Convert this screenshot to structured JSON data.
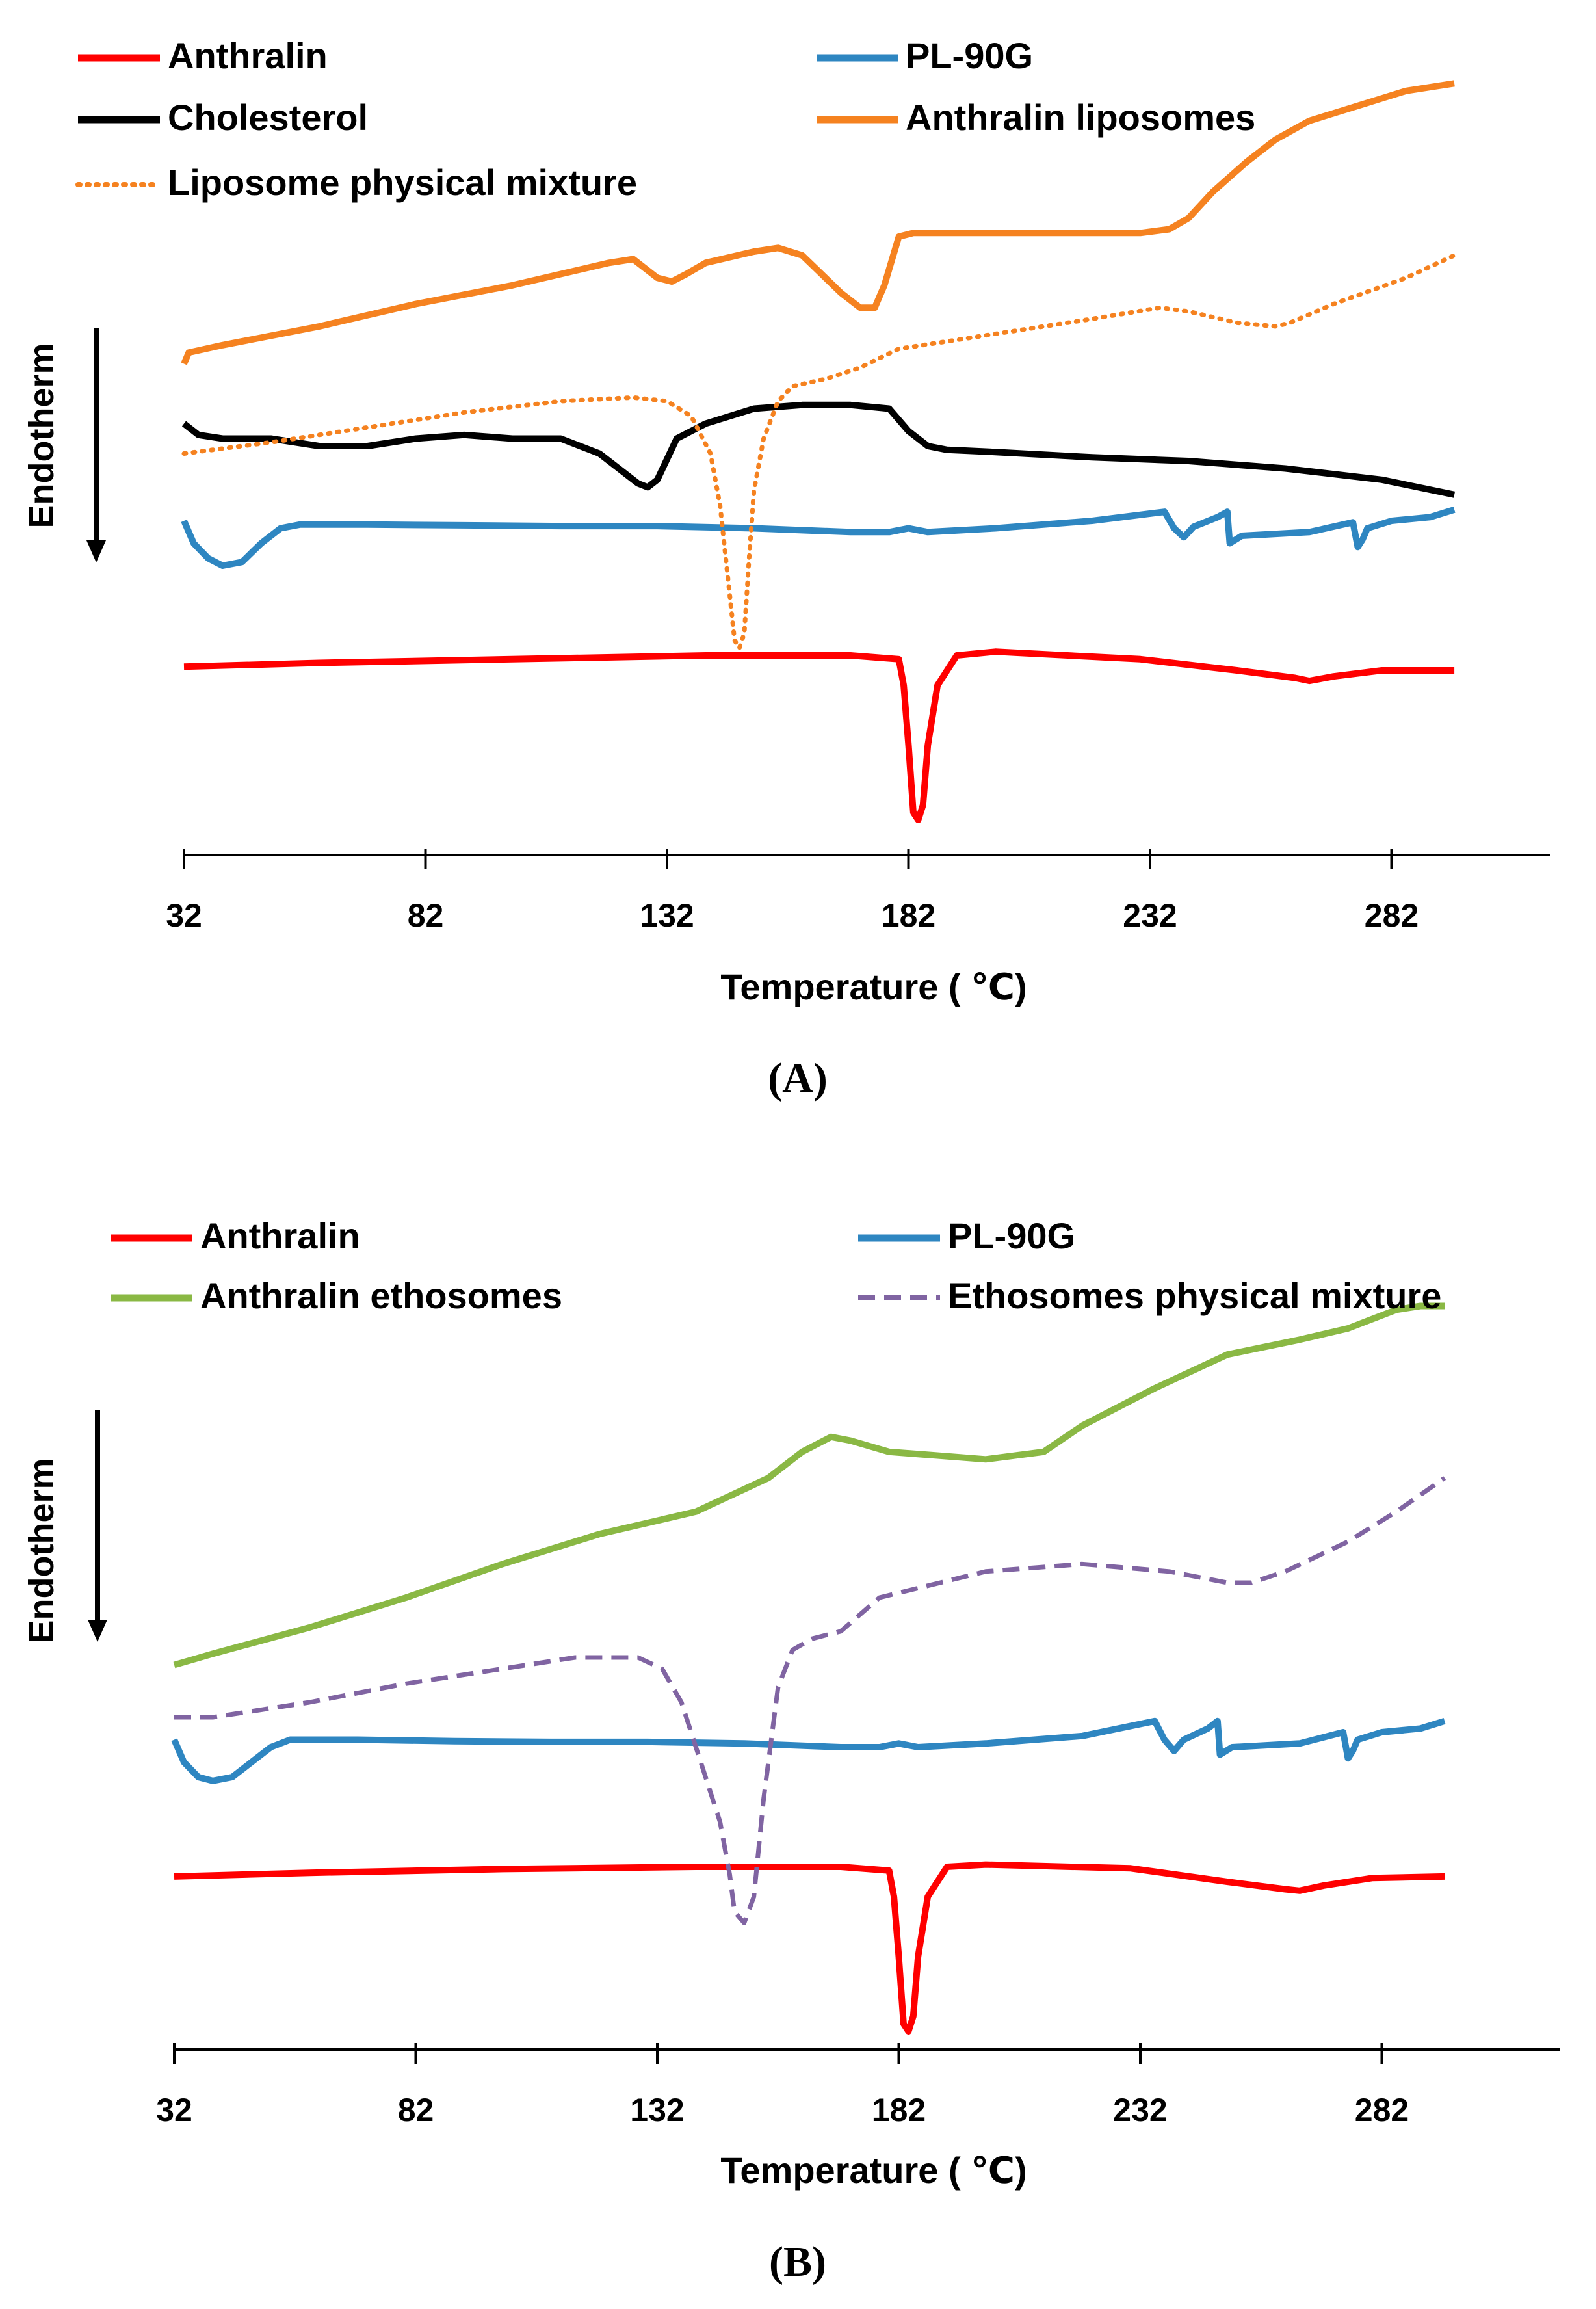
{
  "chart_data": [
    {
      "type": "line",
      "panel_label": "(A)",
      "xlabel": "Temperature ( ℃)",
      "ylabel": "Endotherm",
      "x_ticks": [
        "32",
        "82",
        "132",
        "182",
        "232",
        "282"
      ],
      "xlim": [
        32,
        315
      ],
      "ylim": [
        0,
        100
      ],
      "y_axis_note": "relative heat flow, curves vertically offset; no numeric y scale shown",
      "legend": [
        "Anthralin",
        "PL-90G",
        "Cholesterol",
        "Anthralin liposomes",
        "Liposome physical mixture"
      ],
      "series": [
        {
          "name": "Anthralin",
          "color": "#ff0000",
          "style": "solid",
          "x": [
            32,
            60,
            100,
            140,
            170,
            180,
            181,
            182,
            183,
            184,
            185,
            186,
            188,
            192,
            200,
            230,
            250,
            262,
            265,
            270,
            280,
            295
          ],
          "y": [
            26.5,
            27,
            27.5,
            28,
            28,
            27.5,
            24,
            16,
            7,
            6,
            8,
            16,
            24,
            28,
            28.5,
            27.5,
            26,
            25,
            24.6,
            25.2,
            26,
            26
          ]
        },
        {
          "name": "PL-90G",
          "color": "#2e86c1",
          "style": "solid",
          "x": [
            32,
            34,
            37,
            40,
            44,
            48,
            52,
            56,
            60,
            70,
            90,
            110,
            130,
            150,
            170,
            178,
            182,
            186,
            200,
            220,
            235,
            237,
            239,
            241,
            246,
            248,
            248.5,
            251,
            265,
            274,
            275,
            276,
            277,
            282,
            290,
            295
          ],
          "y": [
            46,
            43,
            41,
            40,
            40.5,
            43,
            45,
            45.5,
            45.5,
            45.5,
            45.4,
            45.3,
            45.3,
            45,
            44.5,
            44.5,
            45,
            44.5,
            45,
            46,
            47.2,
            45,
            43.8,
            45.2,
            46.5,
            47.2,
            43,
            44,
            44.5,
            45.8,
            42.5,
            43.5,
            45,
            46,
            46.5,
            47.5
          ]
        },
        {
          "name": "Cholesterol",
          "color": "#000000",
          "style": "solid",
          "x": [
            32,
            35,
            40,
            50,
            60,
            70,
            80,
            90,
            100,
            110,
            118,
            122,
            126,
            128,
            130,
            134,
            140,
            150,
            160,
            170,
            178,
            182,
            186,
            190,
            200,
            220,
            240,
            260,
            280,
            295
          ],
          "y": [
            59,
            57.5,
            57,
            57,
            56,
            56,
            57,
            57.5,
            57,
            57,
            55,
            53,
            51,
            50.5,
            51.5,
            57,
            59,
            61,
            61.5,
            61.5,
            61,
            58,
            56,
            55.5,
            55.2,
            54.5,
            54,
            53,
            51.5,
            49.5
          ]
        },
        {
          "name": "Anthralin liposomes",
          "color": "#f58220",
          "style": "solid",
          "x": [
            32,
            33,
            40,
            60,
            80,
            100,
            120,
            125,
            130,
            133,
            136,
            140,
            150,
            155,
            160,
            164,
            168,
            172,
            175,
            177,
            180,
            183,
            200,
            220,
            230,
            236,
            240,
            245,
            252,
            258,
            265,
            275,
            285,
            295
          ],
          "y": [
            67,
            68.5,
            69.5,
            72,
            75,
            77.5,
            80.5,
            81,
            78.5,
            78,
            79,
            80.5,
            82,
            82.5,
            81.5,
            79,
            76.5,
            74.5,
            74.5,
            77.5,
            84,
            84.5,
            84.5,
            84.5,
            84.5,
            85,
            86.5,
            90,
            94,
            97,
            99.5,
            101.5,
            103.5,
            104.5
          ]
        },
        {
          "name": "Liposome physical mixture",
          "color": "#f58220",
          "style": "dotted",
          "x": [
            32,
            50,
            70,
            90,
            110,
            125,
            132,
            137,
            141,
            143,
            145,
            146,
            147,
            148,
            149,
            150,
            152,
            155,
            158,
            165,
            172,
            180,
            200,
            220,
            234,
            240,
            250,
            258,
            261,
            270,
            285,
            295
          ],
          "y": [
            55,
            56.5,
            58.5,
            60.5,
            62,
            62.5,
            62,
            60,
            55,
            48,
            36,
            30,
            29,
            31,
            41,
            50,
            57,
            62,
            64,
            65,
            66.5,
            69,
            71,
            73,
            74.5,
            74,
            72.5,
            72,
            72.5,
            75,
            78.5,
            81.5
          ]
        }
      ]
    },
    {
      "type": "line",
      "panel_label": "(B)",
      "xlabel": "Temperature ( ℃)",
      "ylabel": "Endotherm",
      "x_ticks": [
        "32",
        "82",
        "132",
        "182",
        "232",
        "282"
      ],
      "xlim": [
        32,
        315
      ],
      "ylim": [
        0,
        100
      ],
      "y_axis_note": "relative heat flow, curves vertically offset; no numeric y scale shown",
      "legend": [
        "Anthralin",
        "PL-90G",
        "Anthralin ethosomes",
        "Ethosomes physical mixture"
      ],
      "series": [
        {
          "name": "Anthralin",
          "color": "#ff0000",
          "style": "solid",
          "x": [
            32,
            60,
            100,
            140,
            170,
            180,
            181,
            182,
            183,
            184,
            185,
            186,
            188,
            192,
            200,
            230,
            250,
            262,
            265,
            270,
            280,
            295
          ],
          "y": [
            24.7,
            25.2,
            25.7,
            26,
            26,
            25.5,
            22,
            14,
            5,
            4,
            6,
            14,
            22,
            26,
            26.3,
            25.8,
            24,
            23,
            22.8,
            23.5,
            24.5,
            24.7
          ]
        },
        {
          "name": "PL-90G",
          "color": "#2e86c1",
          "style": "solid",
          "x": [
            32,
            34,
            37,
            40,
            44,
            48,
            52,
            56,
            60,
            70,
            90,
            110,
            130,
            150,
            170,
            178,
            182,
            186,
            200,
            220,
            235,
            237,
            239,
            241,
            246,
            248,
            248.5,
            251,
            265,
            274,
            275,
            276,
            277,
            282,
            290,
            295
          ],
          "y": [
            43,
            40,
            38,
            37.5,
            38,
            40,
            42,
            43,
            43,
            43,
            42.8,
            42.7,
            42.7,
            42.5,
            42,
            42,
            42.5,
            42,
            42.5,
            43.5,
            45.5,
            43,
            41.5,
            43,
            44.5,
            45.5,
            41,
            42,
            42.5,
            44,
            40.5,
            41.5,
            43,
            44,
            44.5,
            45.5
          ]
        },
        {
          "name": "Anthralin ethosomes",
          "color": "#8ab844",
          "style": "solid",
          "x": [
            32,
            40,
            60,
            80,
            100,
            120,
            140,
            155,
            162,
            168,
            172,
            180,
            190,
            200,
            212,
            220,
            235,
            250,
            265,
            275,
            285,
            290,
            295
          ],
          "y": [
            53,
            54.5,
            58,
            62,
            66.5,
            70.5,
            73.5,
            78,
            81.5,
            83.5,
            83,
            81.5,
            81,
            80.5,
            81.5,
            85,
            90,
            94.5,
            96.5,
            98,
            100.5,
            101,
            101
          ]
        },
        {
          "name": "Ethosomes physical mixture",
          "color": "#8064a2",
          "style": "dashed",
          "x": [
            32,
            40,
            60,
            80,
            100,
            115,
            128,
            133,
            137,
            141,
            145,
            147,
            148,
            150,
            152,
            154,
            157,
            160,
            164,
            170,
            178,
            200,
            220,
            238,
            250,
            255,
            262,
            275,
            285,
            295
          ],
          "y": [
            46,
            46,
            48,
            50.5,
            52.5,
            54,
            54,
            52.5,
            48,
            40,
            32,
            25,
            20,
            18.5,
            22,
            35,
            50,
            55,
            56.5,
            57.5,
            62,
            65.5,
            66.5,
            65.5,
            64,
            64,
            65.5,
            69.5,
            73.5,
            78
          ]
        }
      ]
    }
  ]
}
